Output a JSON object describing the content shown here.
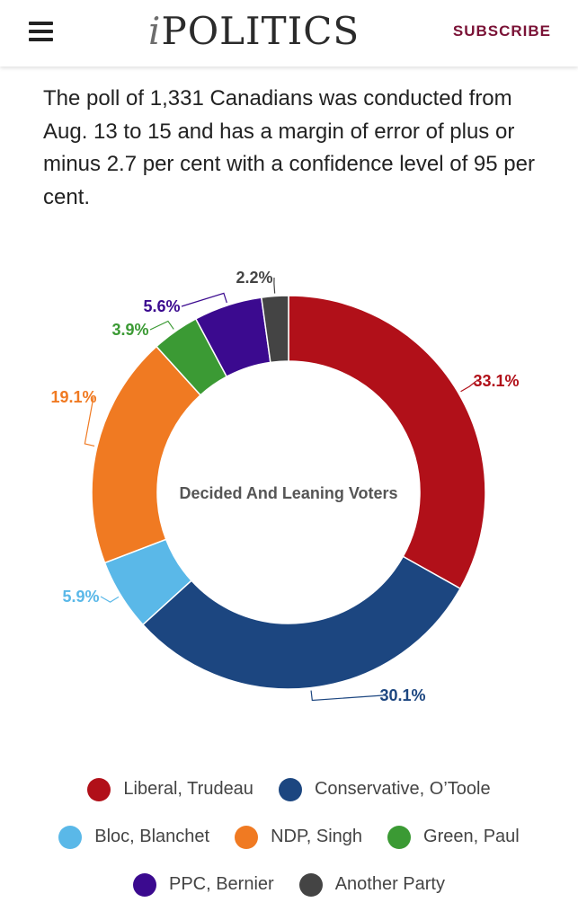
{
  "header": {
    "logo_i": "i",
    "logo_rest": "POLITICS",
    "subscribe_label": "SUBSCRIBE"
  },
  "article": {
    "paragraph": "The poll of 1,331 Canadians was conducted from Aug. 13 to 15 and has a margin of error of plus or minus 2.7 per cent with a confidence level of 95 per cent."
  },
  "chart_data": {
    "type": "pie",
    "donut": true,
    "center_label": "Decided And Leaning Voters",
    "slices": [
      {
        "name": "Liberal, Trudeau",
        "value": 33.1,
        "label": "33.1%",
        "color": "#b11019"
      },
      {
        "name": "Conservative, O’Toole",
        "value": 30.1,
        "label": "30.1%",
        "color": "#1c4680"
      },
      {
        "name": "Bloc, Blanchet",
        "value": 5.9,
        "label": "5.9%",
        "color": "#5ab8e8"
      },
      {
        "name": "NDP, Singh",
        "value": 19.1,
        "label": "19.1%",
        "color": "#f07a22"
      },
      {
        "name": "Green, Paul",
        "value": 3.9,
        "label": "3.9%",
        "color": "#3b9a34"
      },
      {
        "name": "PPC, Bernier",
        "value": 5.6,
        "label": "5.6%",
        "color": "#3b0a8f"
      },
      {
        "name": "Another Party",
        "value": 2.2,
        "label": "2.2%",
        "color": "#444444"
      }
    ]
  },
  "legend": {
    "rows": [
      [
        "Liberal, Trudeau",
        "Conservative, O’Toole"
      ],
      [
        "Bloc, Blanchet",
        "NDP, Singh",
        "Green, Paul"
      ],
      [
        "PPC, Bernier",
        "Another Party"
      ]
    ]
  }
}
